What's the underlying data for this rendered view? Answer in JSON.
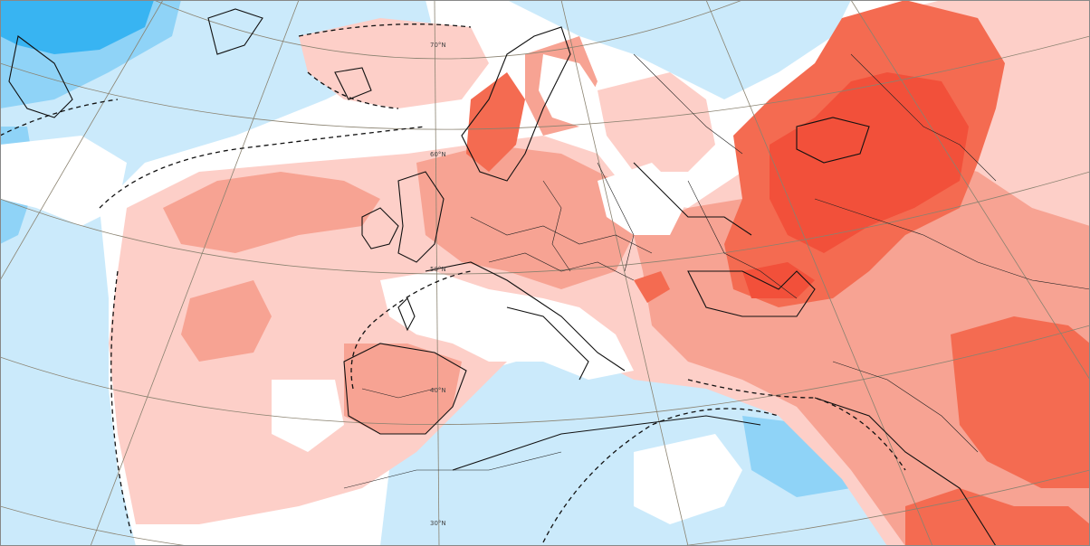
{
  "map": {
    "latitude_labels": [
      "70°N",
      "60°N",
      "50°N",
      "40°N",
      "30°N"
    ],
    "colors": {
      "strong_cold": "#38b4f2",
      "cold": "#8fd3f7",
      "mild_cold": "#cbeafb",
      "mild_warm": "#fdcfc8",
      "warm": "#f7a393",
      "very_warm": "#f46b51",
      "hot": "#f2503a"
    }
  }
}
